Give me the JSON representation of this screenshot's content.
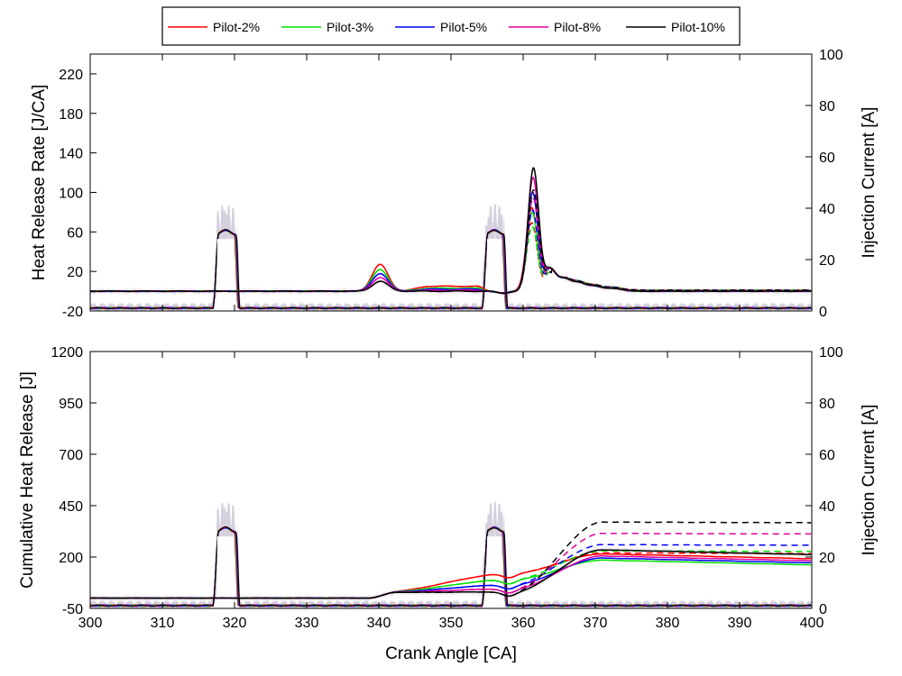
{
  "legend": [
    {
      "name": "Pilot-2%",
      "color": "#ff0000"
    },
    {
      "name": "Pilot-3%",
      "color": "#00e000"
    },
    {
      "name": "Pilot-5%",
      "color": "#0000ff"
    },
    {
      "name": "Pilot-8%",
      "color": "#e0009e"
    },
    {
      "name": "Pilot-10%",
      "color": "#000000"
    }
  ],
  "chart_data": [
    {
      "type": "line",
      "xlabel": "Crank Angle [CA]",
      "ylabel": "Heat Release Rate [J/CA]",
      "y2label": "Injection Current [A]",
      "xlim": [
        300,
        400
      ],
      "ylim": [
        -20,
        240
      ],
      "y2lim": [
        0,
        100
      ],
      "xticks": [
        300,
        310,
        320,
        330,
        340,
        350,
        360,
        370,
        380,
        390,
        400
      ],
      "yticks": [
        -20,
        20,
        60,
        100,
        140,
        180,
        220
      ],
      "y2ticks": [
        0,
        20,
        40,
        60,
        80,
        100
      ],
      "series": [
        {
          "name": "Pilot-2%",
          "color": "#ff0000",
          "peak_pilot": 27,
          "peak_main": 85,
          "plateau": 4
        },
        {
          "name": "Pilot-3%",
          "color": "#00e000",
          "peak_pilot": 22,
          "peak_main": 80,
          "plateau": 2
        },
        {
          "name": "Pilot-5%",
          "color": "#0000ff",
          "peak_pilot": 18,
          "peak_main": 100,
          "plateau": 1
        },
        {
          "name": "Pilot-8%",
          "color": "#e0009e",
          "peak_pilot": 14,
          "peak_main": 115,
          "plateau": 0
        },
        {
          "name": "Pilot-10%",
          "color": "#000000",
          "peak_pilot": 10,
          "peak_main": 125,
          "plateau": -1
        }
      ]
    },
    {
      "type": "line",
      "xlabel": "Crank Angle [CA]",
      "ylabel": "Cumulative Heat Release [J]",
      "y2label": "Injection Current [A]",
      "xlim": [
        300,
        400
      ],
      "ylim": [
        -50,
        1200
      ],
      "y2lim": [
        0,
        100
      ],
      "xticks": [
        300,
        310,
        320,
        330,
        340,
        350,
        360,
        370,
        380,
        390,
        400
      ],
      "yticks": [
        -50,
        200,
        450,
        700,
        950,
        1200
      ],
      "y2ticks": [
        0,
        20,
        40,
        60,
        80,
        100
      ],
      "series": [
        {
          "name": "Pilot-2%",
          "color": "#ff0000",
          "pre_main": 120,
          "final_solid": 190,
          "final_dashed": 195
        },
        {
          "name": "Pilot-3%",
          "color": "#00e000",
          "pre_main": 90,
          "final_solid": 160,
          "final_dashed": 205
        },
        {
          "name": "Pilot-5%",
          "color": "#0000ff",
          "pre_main": 65,
          "final_solid": 170,
          "final_dashed": 235
        },
        {
          "name": "Pilot-8%",
          "color": "#e0009e",
          "pre_main": 45,
          "final_solid": 180,
          "final_dashed": 290
        },
        {
          "name": "Pilot-10%",
          "color": "#000000",
          "pre_main": 30,
          "final_solid": 210,
          "final_dashed": 345
        }
      ]
    }
  ]
}
